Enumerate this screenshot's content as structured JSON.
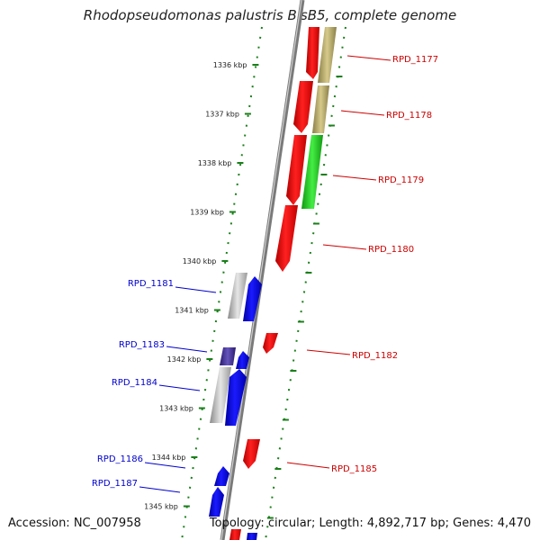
{
  "title": "Rhodopseudomonas palustris BisB5, complete genome",
  "footer": {
    "accession": "Accession: NC_007958",
    "summary": "Topology: circular; Length: 4,892,717 bp; Genes: 4,470"
  },
  "colors": {
    "backbone": "#8c8c8c",
    "ticks": "#1a7f1a",
    "forward_label": "#cc0000",
    "reverse_label": "#0000cc",
    "red_gene": "#ee0000",
    "blue_gene": "#0000ee",
    "green_gene": "#22cc22",
    "olive_gene": "#b5a86a",
    "grey_gene": "#bdbdbd",
    "purple_gene": "#443399"
  },
  "kbp_ticks": [
    "1336 kbp",
    "1337 kbp",
    "1338 kbp",
    "1339 kbp",
    "1340 kbp",
    "1341 kbp",
    "1342 kbp",
    "1343 kbp",
    "1344 kbp",
    "1345 kbp"
  ],
  "gene_labels": {
    "forward": [
      "RPD_1177",
      "RPD_1178",
      "RPD_1179",
      "RPD_1180",
      "RPD_1182",
      "RPD_1185"
    ],
    "reverse": [
      "RPD_1181",
      "RPD_1183",
      "RPD_1184",
      "RPD_1186",
      "RPD_1187"
    ]
  }
}
